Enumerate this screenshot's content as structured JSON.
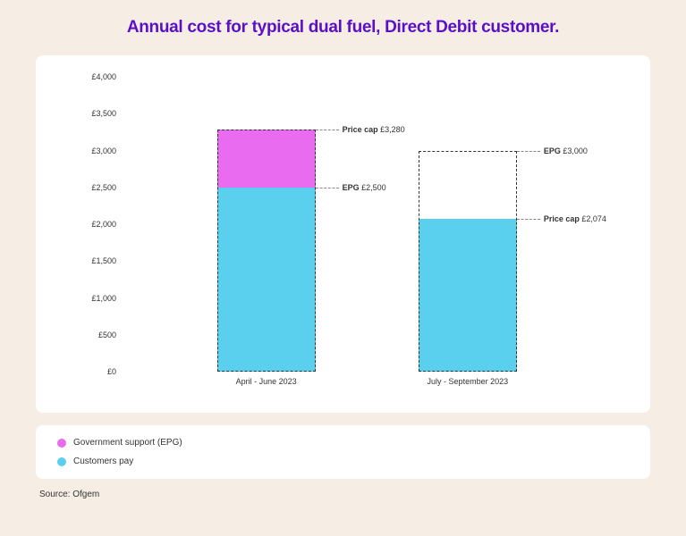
{
  "title": "Annual cost for typical dual fuel, Direct Debit customer.",
  "background_color": "#f6ede5",
  "panel_color": "#ffffff",
  "title_color": "#5a0fc8",
  "chart": {
    "type": "stacked-bar",
    "ymin": 0,
    "ymax": 4000,
    "ytick_step": 500,
    "currency": "£",
    "y_ticks": [
      {
        "v": 0,
        "label": "£0"
      },
      {
        "v": 500,
        "label": "£500"
      },
      {
        "v": 1000,
        "label": "£1,000"
      },
      {
        "v": 1500,
        "label": "£1,500"
      },
      {
        "v": 2000,
        "label": "£2,000"
      },
      {
        "v": 2500,
        "label": "£2,500"
      },
      {
        "v": 3000,
        "label": "£3,000"
      },
      {
        "v": 3500,
        "label": "£3,500"
      },
      {
        "v": 4000,
        "label": "£4,000"
      }
    ],
    "series_colors": {
      "customers_pay": "#5bcfee",
      "gov_support": "#e86bf0"
    },
    "dash_border_color": "#333333",
    "bars": [
      {
        "label": "April - June 2023",
        "price_cap": 3280,
        "epg": 2500,
        "customers_pay": 2500,
        "gov_support": 780,
        "dash_rect_top": 3280,
        "annotations": [
          {
            "key": "Price cap",
            "value": "£3,280",
            "at": 3280
          },
          {
            "key": "EPG",
            "value": "£2,500",
            "at": 2500
          }
        ]
      },
      {
        "label": "July - September 2023",
        "price_cap": 2074,
        "epg": 3000,
        "customers_pay": 2074,
        "gov_support": 0,
        "dash_rect_top": 3000,
        "annotations": [
          {
            "key": "EPG",
            "value": "£3,000",
            "at": 3000
          },
          {
            "key": "Price cap",
            "value": "£2,074",
            "at": 2074
          }
        ]
      }
    ]
  },
  "legend": [
    {
      "swatch": "#e86bf0",
      "label": "Government support (EPG)"
    },
    {
      "swatch": "#5bcfee",
      "label": "Customers pay"
    }
  ],
  "source": "Source: Ofgem"
}
